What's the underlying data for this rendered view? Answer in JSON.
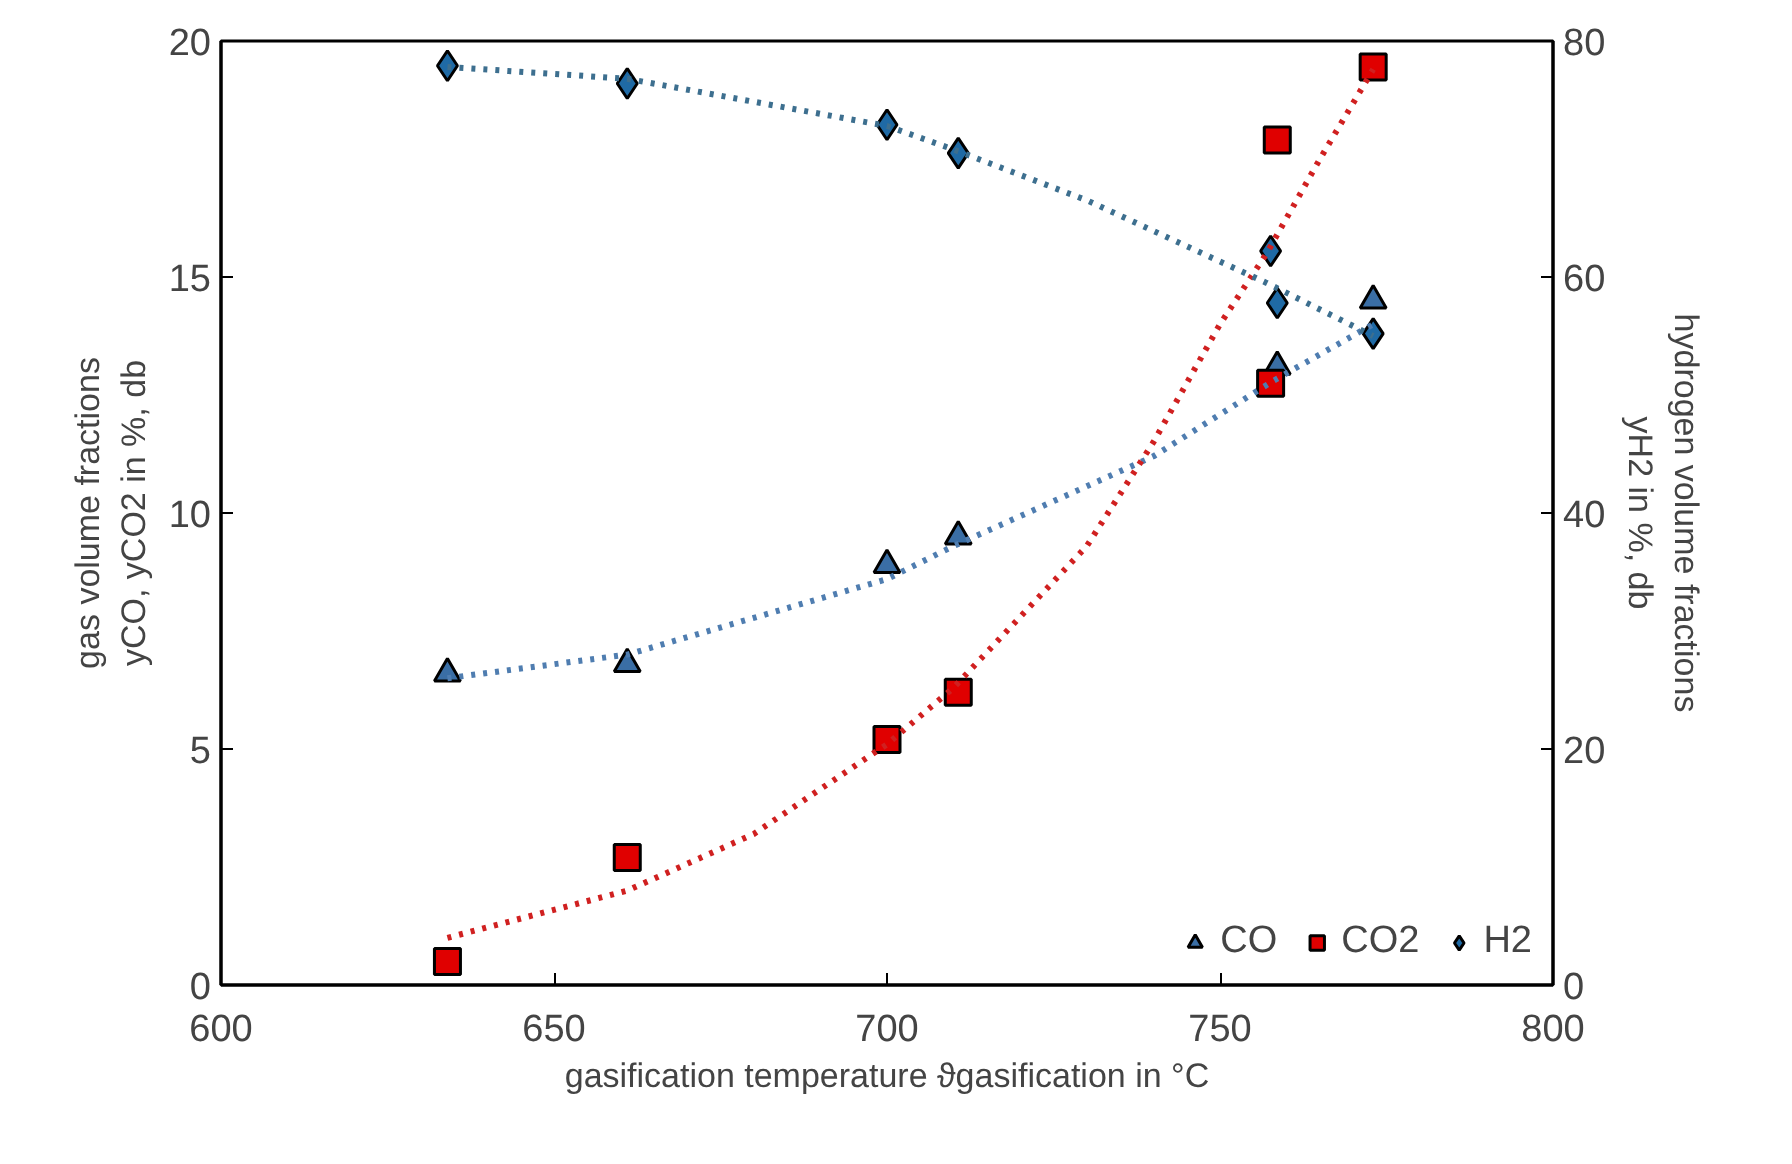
{
  "chart_data": {
    "type": "scatter",
    "xlabel": "gasification temperature ϑgasification in °C",
    "ylabel": "gas volume fractions\nyCO, yCO2 in %, db",
    "y2label": "hydrogen volume fractions\nyH2 in %, db",
    "xlim": [
      600,
      800
    ],
    "xticks": [
      600,
      650,
      700,
      750,
      800
    ],
    "ylim": [
      0,
      20
    ],
    "yticks": [
      0,
      5,
      10,
      15,
      20
    ],
    "y2lim": [
      0,
      80
    ],
    "y2ticks": [
      0,
      20,
      40,
      60,
      80
    ],
    "grid": false,
    "legend": "bottom right",
    "series": [
      {
        "name": "CO",
        "marker": "triangle",
        "color": "#3a6ea5",
        "x": [
          634,
          661,
          700,
          710.7,
          758.6,
          773
        ],
        "values": [
          6.6,
          6.8,
          8.9,
          9.5,
          13.1,
          14.5
        ]
      },
      {
        "name": "CO2",
        "marker": "square",
        "color": "#e00000",
        "x": [
          634,
          661,
          700,
          710.7,
          757.6,
          758.6,
          773
        ],
        "values": [
          0.5,
          2.7,
          5.2,
          6.2,
          12.75,
          17.9,
          19.45
        ]
      },
      {
        "name": "H2",
        "marker": "diamond",
        "color": "#1f6aa5",
        "axis": "y2",
        "x": [
          634,
          661,
          700,
          710.7,
          757.6,
          758.6,
          773
        ],
        "values": [
          77.9,
          76.4,
          72.9,
          70.5,
          62.2,
          57.8,
          55.2
        ]
      },
      {
        "type": "line",
        "line_style": "dotted",
        "color": "#4f7db0",
        "x": [
          634,
          661,
          700,
          710,
          740,
          758,
          773
        ],
        "values": [
          6.5,
          7.0,
          8.6,
          9.3,
          11.2,
          12.8,
          14.0
        ]
      },
      {
        "type": "line",
        "line_style": "dotted",
        "color": "#d02020",
        "x": [
          634,
          661,
          680,
          700,
          710,
          730,
          740,
          750,
          757,
          765,
          773
        ],
        "values": [
          1.0,
          2.0,
          3.2,
          5.1,
          6.3,
          9.3,
          11.5,
          14.0,
          15.5,
          17.5,
          19.4
        ]
      },
      {
        "type": "line",
        "line_style": "dotted",
        "color": "#3d6f8f",
        "axis": "y2",
        "x": [
          634,
          661,
          700,
          710,
          730,
          757,
          773
        ],
        "values": [
          77.8,
          76.8,
          72.8,
          70.8,
          66.5,
          59.5,
          55.0
        ]
      }
    ]
  }
}
